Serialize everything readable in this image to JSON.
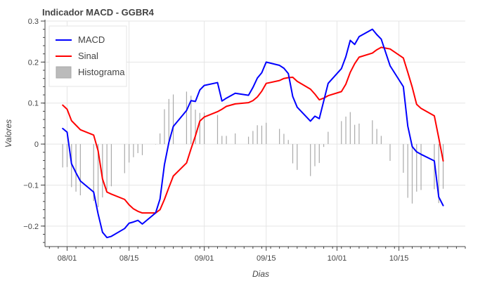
{
  "chart_data": {
    "type": "line",
    "title": "Indicador MACD - GGBR4",
    "xlabel": "Dias",
    "ylabel": "Valores",
    "ylim": [
      -0.25,
      0.3
    ],
    "yticks": [
      -0.2,
      -0.1,
      0,
      0.1,
      0.2,
      0.3
    ],
    "ytick_labels": [
      "−0.2",
      "−0.1",
      "0",
      "0.1",
      "0.2",
      "0.3"
    ],
    "x_range": [
      "2023-07-27",
      "2023-10-30"
    ],
    "xticks": [
      "2023-08-01",
      "2023-08-15",
      "2023-09-01",
      "2023-09-15",
      "2023-10-01",
      "2023-10-15"
    ],
    "xtick_labels": [
      "08/01",
      "08/15",
      "09/01",
      "09/15",
      "10/01",
      "10/15"
    ],
    "grid": true,
    "legend_position": "top-left",
    "colors": {
      "macd": "#0000ff",
      "sinal": "#ff0000",
      "histograma": "#aaaaaa",
      "grid": "#e5e5e5"
    },
    "series": [
      {
        "name": "MACD",
        "type": "line",
        "color": "#0000ff",
        "x": [
          "2023-07-31",
          "2023-08-01",
          "2023-08-02",
          "2023-08-03",
          "2023-08-04",
          "2023-08-07",
          "2023-08-08",
          "2023-08-09",
          "2023-08-10",
          "2023-08-11",
          "2023-08-14",
          "2023-08-15",
          "2023-08-16",
          "2023-08-17",
          "2023-08-18",
          "2023-08-21",
          "2023-08-22",
          "2023-08-23",
          "2023-08-24",
          "2023-08-25",
          "2023-08-28",
          "2023-08-29",
          "2023-08-30",
          "2023-08-31",
          "2023-09-01",
          "2023-09-04",
          "2023-09-05",
          "2023-09-06",
          "2023-09-08",
          "2023-09-11",
          "2023-09-12",
          "2023-09-13",
          "2023-09-14",
          "2023-09-15",
          "2023-09-18",
          "2023-09-19",
          "2023-09-20",
          "2023-09-21",
          "2023-09-22",
          "2023-09-25",
          "2023-09-26",
          "2023-09-27",
          "2023-09-28",
          "2023-09-29",
          "2023-10-02",
          "2023-10-03",
          "2023-10-04",
          "2023-10-05",
          "2023-10-06",
          "2023-10-09",
          "2023-10-10",
          "2023-10-11",
          "2023-10-13",
          "2023-10-16",
          "2023-10-17",
          "2023-10-18",
          "2023-10-19",
          "2023-10-20",
          "2023-10-23",
          "2023-10-24",
          "2023-10-25"
        ],
        "values": [
          0.038,
          0.029,
          -0.048,
          -0.07,
          -0.09,
          -0.117,
          -0.17,
          -0.215,
          -0.228,
          -0.225,
          -0.206,
          -0.193,
          -0.19,
          -0.186,
          -0.195,
          -0.168,
          -0.134,
          -0.05,
          0.004,
          0.043,
          0.082,
          0.106,
          0.104,
          0.132,
          0.143,
          0.15,
          0.105,
          0.112,
          0.124,
          0.119,
          0.138,
          0.161,
          0.174,
          0.2,
          0.192,
          0.185,
          0.172,
          0.116,
          0.09,
          0.056,
          0.068,
          0.062,
          0.105,
          0.148,
          0.184,
          0.213,
          0.253,
          0.243,
          0.262,
          0.28,
          0.267,
          0.256,
          0.191,
          0.14,
          0.044,
          -0.006,
          -0.019,
          -0.025,
          -0.041,
          -0.129,
          -0.15
        ]
      },
      {
        "name": "Sinal",
        "type": "line",
        "color": "#ff0000",
        "x": [
          "2023-07-31",
          "2023-08-01",
          "2023-08-02",
          "2023-08-03",
          "2023-08-04",
          "2023-08-07",
          "2023-08-08",
          "2023-08-09",
          "2023-08-10",
          "2023-08-11",
          "2023-08-14",
          "2023-08-15",
          "2023-08-16",
          "2023-08-17",
          "2023-08-18",
          "2023-08-21",
          "2023-08-22",
          "2023-08-23",
          "2023-08-24",
          "2023-08-25",
          "2023-08-28",
          "2023-08-29",
          "2023-08-30",
          "2023-08-31",
          "2023-09-01",
          "2023-09-04",
          "2023-09-05",
          "2023-09-06",
          "2023-09-08",
          "2023-09-11",
          "2023-09-12",
          "2023-09-13",
          "2023-09-14",
          "2023-09-15",
          "2023-09-18",
          "2023-09-19",
          "2023-09-20",
          "2023-09-21",
          "2023-09-22",
          "2023-09-25",
          "2023-09-26",
          "2023-09-27",
          "2023-09-28",
          "2023-09-29",
          "2023-10-02",
          "2023-10-03",
          "2023-10-04",
          "2023-10-05",
          "2023-10-06",
          "2023-10-09",
          "2023-10-10",
          "2023-10-11",
          "2023-10-13",
          "2023-10-16",
          "2023-10-17",
          "2023-10-18",
          "2023-10-19",
          "2023-10-20",
          "2023-10-23",
          "2023-10-24",
          "2023-10-25"
        ],
        "values": [
          0.095,
          0.085,
          0.057,
          0.046,
          0.035,
          0.022,
          -0.016,
          -0.085,
          -0.117,
          -0.122,
          -0.135,
          -0.148,
          -0.158,
          -0.164,
          -0.168,
          -0.168,
          -0.16,
          -0.135,
          -0.106,
          -0.078,
          -0.046,
          -0.012,
          0.02,
          0.056,
          0.066,
          0.079,
          0.085,
          0.092,
          0.098,
          0.101,
          0.106,
          0.115,
          0.129,
          0.148,
          0.155,
          0.16,
          0.162,
          0.163,
          0.153,
          0.134,
          0.122,
          0.108,
          0.112,
          0.118,
          0.128,
          0.146,
          0.175,
          0.196,
          0.212,
          0.222,
          0.23,
          0.236,
          0.232,
          0.21,
          0.175,
          0.139,
          0.097,
          0.087,
          0.069,
          0.015,
          -0.041
        ]
      },
      {
        "name": "Histograma",
        "type": "bar",
        "color": "#aaaaaa",
        "x": [
          "2023-07-31",
          "2023-08-01",
          "2023-08-02",
          "2023-08-03",
          "2023-08-04",
          "2023-08-07",
          "2023-08-08",
          "2023-08-09",
          "2023-08-10",
          "2023-08-11",
          "2023-08-14",
          "2023-08-15",
          "2023-08-16",
          "2023-08-17",
          "2023-08-18",
          "2023-08-21",
          "2023-08-22",
          "2023-08-23",
          "2023-08-24",
          "2023-08-25",
          "2023-08-28",
          "2023-08-29",
          "2023-08-30",
          "2023-08-31",
          "2023-09-01",
          "2023-09-04",
          "2023-09-05",
          "2023-09-06",
          "2023-09-08",
          "2023-09-11",
          "2023-09-12",
          "2023-09-13",
          "2023-09-14",
          "2023-09-15",
          "2023-09-18",
          "2023-09-19",
          "2023-09-20",
          "2023-09-21",
          "2023-09-22",
          "2023-09-25",
          "2023-09-26",
          "2023-09-27",
          "2023-09-28",
          "2023-09-29",
          "2023-10-02",
          "2023-10-03",
          "2023-10-04",
          "2023-10-05",
          "2023-10-06",
          "2023-10-09",
          "2023-10-10",
          "2023-10-11",
          "2023-10-13",
          "2023-10-16",
          "2023-10-17",
          "2023-10-18",
          "2023-10-19",
          "2023-10-20",
          "2023-10-23",
          "2023-10-24",
          "2023-10-25"
        ],
        "values": [
          -0.057,
          -0.056,
          -0.105,
          -0.116,
          -0.125,
          -0.139,
          -0.154,
          -0.13,
          -0.111,
          -0.103,
          -0.071,
          -0.045,
          -0.032,
          -0.022,
          -0.027,
          0.0,
          0.026,
          0.085,
          0.11,
          0.121,
          0.128,
          0.118,
          0.084,
          0.076,
          0.077,
          0.071,
          0.02,
          0.02,
          0.026,
          0.018,
          0.032,
          0.046,
          0.045,
          0.052,
          0.037,
          0.025,
          0.01,
          -0.047,
          -0.063,
          -0.078,
          -0.054,
          -0.046,
          -0.007,
          0.03,
          0.056,
          0.067,
          0.078,
          0.047,
          0.05,
          0.058,
          0.037,
          0.02,
          -0.041,
          -0.07,
          -0.131,
          -0.145,
          -0.116,
          -0.112,
          -0.11,
          -0.144,
          -0.109
        ]
      }
    ]
  }
}
